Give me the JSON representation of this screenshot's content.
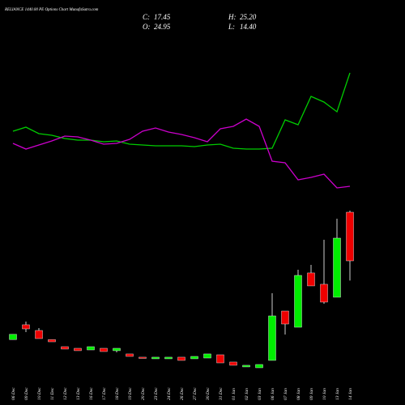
{
  "chart_data": {
    "type": "candlestick",
    "title": "RELIANCE 1440.00 PE Options Chart MunafaSutra.com",
    "summary": [
      {
        "name": "C:",
        "value": 17.45
      },
      {
        "name": "H:",
        "value": {
          "value": 25.2,
          "label": "25.20"
        }
      },
      {
        "name": "O:",
        "value": 24.95
      },
      {
        "name": "L:",
        "value": {
          "value": 14.4,
          "label": "14.40"
        }
      }
    ],
    "categories": [
      "06 Dec",
      "09 Dec",
      "10 Dec",
      "11 Dec",
      "12 Dec",
      "13 Dec",
      "16 Dec",
      "17 Dec",
      "18 Dec",
      "19 Dec",
      "20 Dec",
      "23 Dec",
      "24 Dec",
      "26 Dec",
      "27 Dec",
      "30 Dec",
      "31 Dec",
      "01 Jan",
      "02 Jan",
      "03 Jan",
      "06 Jan",
      "07 Jan",
      "08 Jan",
      "09 Jan",
      "10 Jan",
      "13 Jan",
      "14 Jan"
    ],
    "open": [
      5.3,
      7.58,
      6.7,
      5.3,
      4.2,
      3.95,
      3.7,
      3.95,
      3.58,
      3.08,
      2.58,
      2.33,
      2.33,
      2.58,
      2.33,
      2.45,
      2.95,
      1.83,
      1.08,
      0.95,
      2.08,
      9.7,
      7.2,
      15.58,
      13.83,
      11.83,
      24.95
    ],
    "high": [
      6.1,
      8.08,
      7.08,
      5.3,
      4.2,
      3.95,
      4.2,
      3.95,
      3.95,
      3.08,
      2.58,
      2.58,
      2.58,
      2.58,
      2.7,
      3.08,
      2.95,
      1.83,
      1.33,
      1.45,
      12.45,
      9.7,
      16.08,
      16.83,
      20.7,
      23.95,
      25.2
    ],
    "low": [
      5.3,
      6.45,
      5.45,
      4.95,
      3.83,
      3.58,
      3.7,
      3.45,
      3.33,
      2.7,
      2.45,
      2.33,
      2.33,
      2.08,
      2.33,
      2.45,
      1.7,
      1.33,
      1.08,
      0.95,
      2.08,
      6.08,
      7.2,
      13.58,
      10.83,
      11.83,
      14.4
    ],
    "close": [
      6.1,
      6.95,
      5.45,
      4.95,
      3.83,
      3.58,
      4.2,
      3.45,
      3.95,
      2.7,
      2.45,
      2.58,
      2.58,
      2.08,
      2.7,
      3.08,
      1.7,
      1.33,
      1.33,
      1.45,
      8.95,
      7.7,
      15.2,
      13.58,
      11.08,
      20.95,
      17.45
    ],
    "up_color": "#00ee00",
    "down_color": "#ee0000",
    "ylim": [
      -4.8,
      57.7
    ],
    "lines": {
      "ylim": [
        0,
        500
      ],
      "series": [
        {
          "color": "#00cc00",
          "values": [
            338,
            343,
            335,
            333,
            329,
            327,
            327,
            325,
            326,
            322,
            321,
            320,
            320,
            320,
            319,
            321,
            322,
            317,
            316,
            316,
            317,
            352,
            346,
            381,
            374,
            362,
            410
          ]
        },
        {
          "color": "#cc00cc",
          "values": [
            323,
            316,
            321,
            326,
            332,
            331,
            327,
            322,
            323,
            328,
            338,
            342,
            337,
            334,
            330,
            325,
            341,
            344,
            353,
            344,
            301,
            299,
            278,
            281,
            285,
            268,
            270
          ]
        }
      ]
    }
  }
}
